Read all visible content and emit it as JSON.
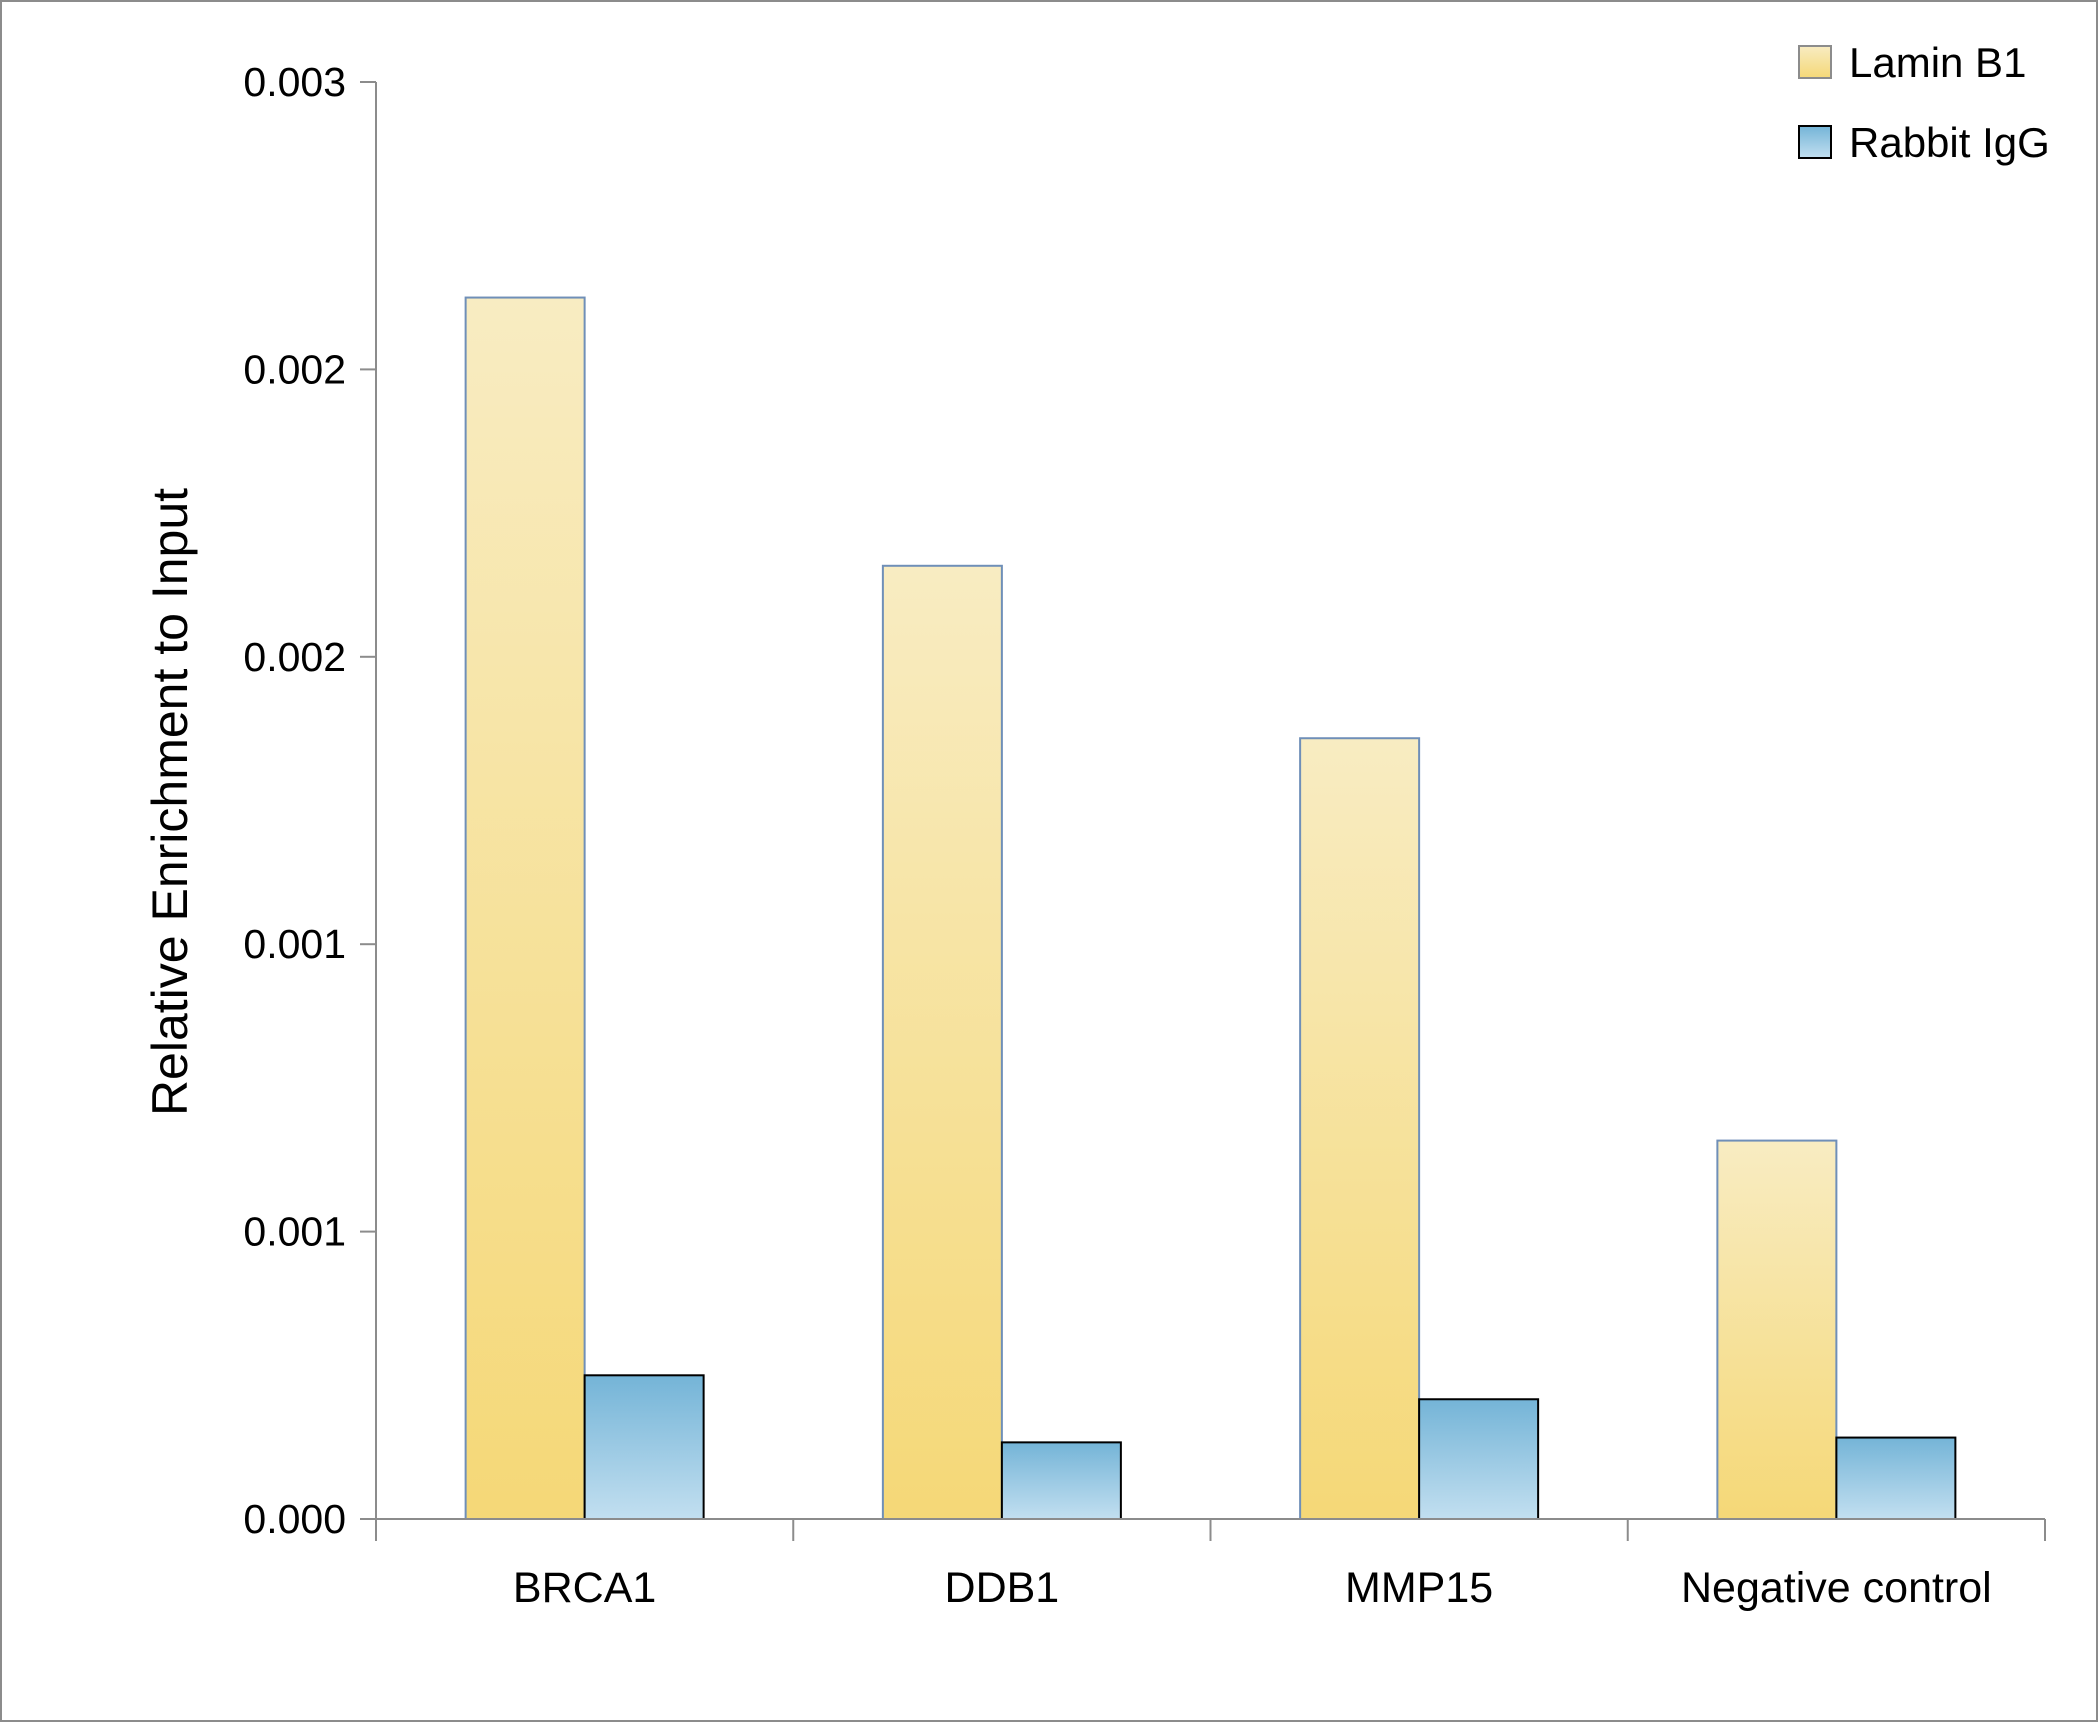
{
  "chart_data": {
    "type": "bar",
    "categories": [
      "BRCA1",
      "DDB1",
      "MMP15",
      "Negative control"
    ],
    "series": [
      {
        "name": "Lamin B1",
        "values": [
          0.00255,
          0.00199,
          0.00163,
          0.00079
        ]
      },
      {
        "name": "Rabbit IgG",
        "values": [
          0.0003,
          0.00016,
          0.00025,
          0.00017
        ]
      }
    ],
    "y_tick_labels": [
      "0.000",
      "0.001",
      "0.001",
      "0.002",
      "0.002",
      "0.003"
    ],
    "ylabel": "Relative Enrichment to Input",
    "xlabel": "",
    "ylim": [
      0,
      0.003
    ],
    "grid": false,
    "legend_position": "top-right",
    "colors": {
      "lamin_top": "#f8ecc2",
      "lamin_bottom": "#f5d877",
      "lamin_border": "#6f8fb8",
      "igg_top": "#74b4d7",
      "igg_bottom": "#c2dff0",
      "igg_border": "#000000",
      "axis": "#8c8c8c"
    }
  }
}
